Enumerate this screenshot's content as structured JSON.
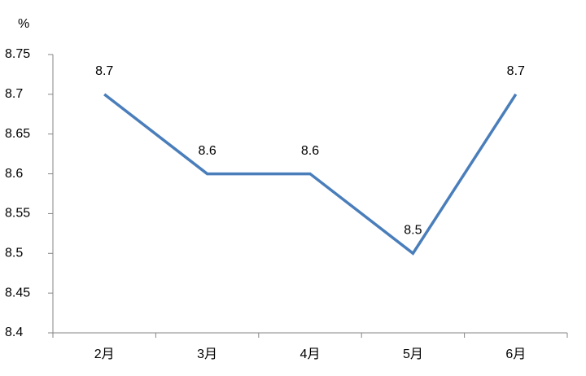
{
  "chart_data": {
    "type": "line",
    "y_label": "%",
    "categories": [
      "2月",
      "3月",
      "4月",
      "5月",
      "6月"
    ],
    "series": [
      {
        "name": "value",
        "color": "#4a7ebb",
        "values": [
          8.7,
          8.6,
          8.6,
          8.5,
          8.7
        ]
      }
    ],
    "ylim": [
      8.4,
      8.75
    ],
    "yticks": [
      8.4,
      8.45,
      8.5,
      8.55,
      8.6,
      8.65,
      8.7,
      8.75
    ],
    "grid": false
  }
}
